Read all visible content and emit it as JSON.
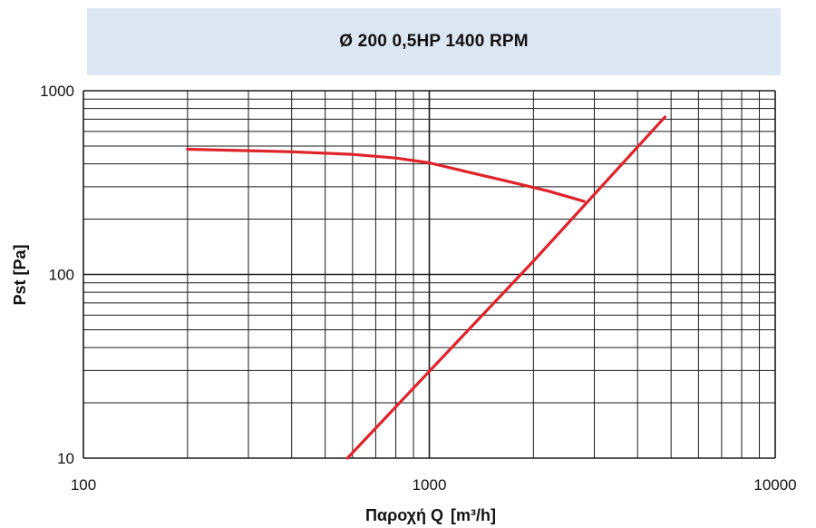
{
  "chart_data": {
    "type": "line",
    "title": "Ø 200 0,5HP 1400 RPM",
    "xlabel": "Παροχή Q",
    "xlabel_unit": "[m³/h]",
    "ylabel": "Pst [Pa]",
    "x_scale": "log",
    "y_scale": "log",
    "xlim": [
      100,
      10000
    ],
    "ylim": [
      10,
      1000
    ],
    "x_ticks": [
      "100",
      "1000",
      "10000"
    ],
    "y_ticks": [
      "10",
      "100",
      "1000"
    ],
    "grid": true,
    "colors": {
      "curve": "#e0232a",
      "grid": "#1a1a1a",
      "banner": "#dde6f3"
    },
    "series": [
      {
        "x": [
          200,
          400,
          600,
          800,
          1000,
          1300,
          1700,
          2200,
          2800
        ],
        "y": [
          480,
          465,
          450,
          430,
          405,
          360,
          320,
          285,
          250
        ]
      },
      {
        "x": [
          580,
          1000,
          2000,
          4800
        ],
        "y": [
          10,
          29.7,
          118,
          720
        ]
      }
    ]
  }
}
